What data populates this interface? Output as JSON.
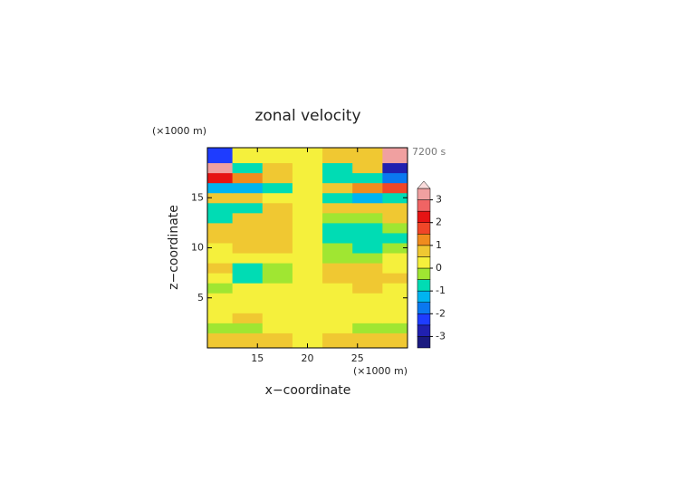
{
  "chart_data": {
    "type": "contour",
    "title": "zonal velocity",
    "xlabel": "x−coordinate",
    "ylabel": "z−coordinate",
    "xunit": "(×1000 m)",
    "yunit": "(×1000 m)",
    "time_label": "7200 s",
    "xlim": [
      10,
      30
    ],
    "ylim": [
      0,
      20
    ],
    "xticks": [
      15,
      20,
      25
    ],
    "yticks": [
      5,
      10,
      15
    ],
    "x": [
      11,
      14,
      17,
      20,
      23,
      26,
      29
    ],
    "y": [
      1,
      2,
      3,
      4,
      5,
      6,
      7,
      8,
      9,
      10,
      11,
      12,
      13,
      14,
      15,
      16,
      17,
      18,
      19
    ],
    "values": [
      [
        0.8,
        0.6,
        0.5,
        0,
        0.6,
        0.8,
        0.8
      ],
      [
        -0.5,
        -0.3,
        0.2,
        0,
        0.3,
        -0.3,
        -0.5
      ],
      [
        0.3,
        0.5,
        0.3,
        0,
        0.2,
        0.4,
        0.3
      ],
      [
        0.2,
        0.1,
        0.3,
        0.2,
        0.3,
        0.1,
        0.2
      ],
      [
        0.3,
        0.2,
        0.3,
        0.3,
        0.2,
        0.4,
        0.3
      ],
      [
        -0.5,
        0.2,
        0.3,
        0.2,
        0.3,
        0.6,
        0.4
      ],
      [
        0.4,
        -0.8,
        -0.5,
        0.2,
        0.7,
        0.9,
        0.6
      ],
      [
        0.5,
        -0.6,
        -0.3,
        0,
        0.5,
        0.6,
        0.4
      ],
      [
        0.3,
        0.4,
        0.3,
        0.2,
        -0.3,
        -0.2,
        0.2
      ],
      [
        0.4,
        0.5,
        0.6,
        0,
        -0.5,
        -0.6,
        -0.4
      ],
      [
        0.8,
        0.9,
        0.7,
        0,
        -0.6,
        -0.9,
        -0.6
      ],
      [
        0.6,
        0.7,
        0.8,
        0.2,
        -0.7,
        -0.7,
        -0.5
      ],
      [
        -0.6,
        0.6,
        0.7,
        0.1,
        -0.5,
        -0.5,
        0.5
      ],
      [
        -0.9,
        -0.6,
        0.5,
        0,
        0.5,
        0.8,
        0.6
      ],
      [
        0.7,
        0.8,
        0.4,
        0.2,
        -0.6,
        -1.2,
        -0.8
      ],
      [
        -1.5,
        -1.2,
        -0.8,
        0,
        0.8,
        1.2,
        1.5
      ],
      [
        2.0,
        1.0,
        0.7,
        0,
        -0.6,
        -1.0,
        -2.0
      ],
      [
        3.0,
        -0.8,
        0.6,
        0,
        -0.6,
        0.8,
        -3.0
      ],
      [
        -2.5,
        0.3,
        0.3,
        0,
        0.5,
        0.5,
        3.0
      ]
    ],
    "levels": [
      -3.5,
      -3,
      -2.5,
      -2,
      -1.5,
      -1,
      -0.5,
      0,
      0.5,
      1,
      1.5,
      2,
      2.5,
      3,
      3.5
    ],
    "colors": [
      "#1a1a80",
      "#2020b0",
      "#1e3cff",
      "#0a78f0",
      "#00b4f0",
      "#00dcb4",
      "#a0e632",
      "#f5f03c",
      "#f0c832",
      "#f08c1e",
      "#f04628",
      "#e61414",
      "#f06464",
      "#f0a0a0",
      "#fadcdc"
    ],
    "cbar_ticks": [
      -3,
      -2,
      -1,
      0,
      1,
      2,
      3
    ]
  }
}
